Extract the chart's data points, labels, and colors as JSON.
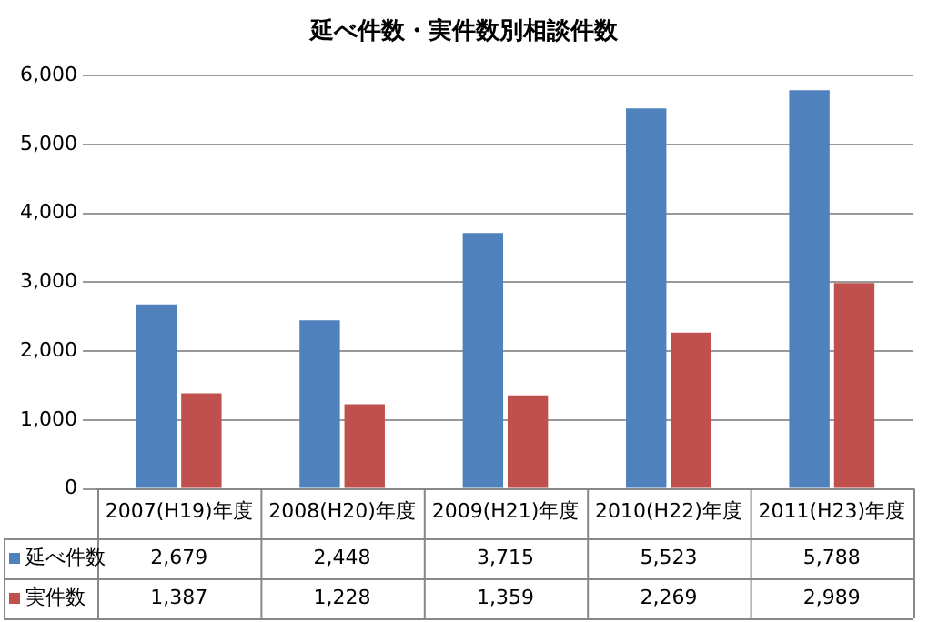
{
  "chart_data": {
    "type": "bar",
    "title": "延べ件数・実件数別相談件数",
    "categories": [
      "2007(H19)年度",
      "2008(H20)年度",
      "2009(H21)年度",
      "2010(H22)年度",
      "2011(H23)年度"
    ],
    "series": [
      {
        "name": "延べ件数",
        "color": "#4f81bd",
        "values": [
          2679,
          2448,
          3715,
          5523,
          5788
        ],
        "value_labels": [
          "2,679",
          "2,448",
          "3,715",
          "5,523",
          "5,788"
        ]
      },
      {
        "name": "実件数",
        "color": "#c0504d",
        "values": [
          1387,
          1228,
          1359,
          2269,
          2989
        ],
        "value_labels": [
          "1,387",
          "1,228",
          "1,359",
          "2,269",
          "2,989"
        ]
      }
    ],
    "ylim": [
      0,
      6000
    ],
    "yticks": [
      0,
      {
        "value": 1000,
        "label": "1,000"
      },
      {
        "value": 2000,
        "label": "2,000"
      },
      {
        "value": 3000,
        "label": "3,000"
      },
      {
        "value": 4000,
        "label": "4,000"
      },
      {
        "value": 5000,
        "label": "5,000"
      },
      {
        "value": 6000,
        "label": "6,000"
      }
    ],
    "grid": "y",
    "legend": "bottom"
  }
}
